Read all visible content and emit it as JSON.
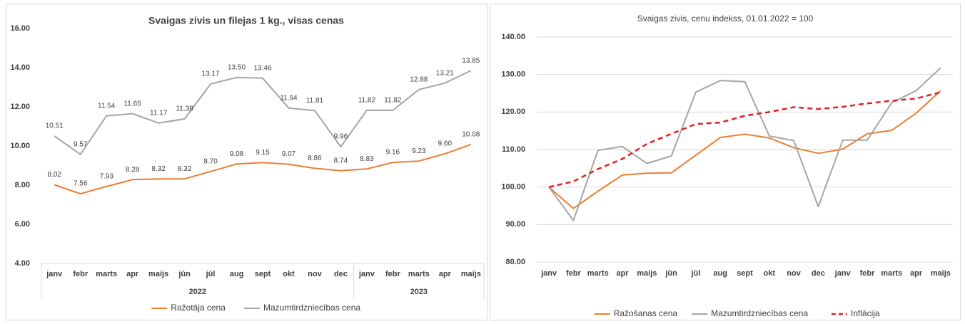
{
  "chart_data": [
    {
      "type": "line",
      "title": "Svaigas zivis un filejas 1 kg., visas cenas",
      "categories": [
        "janv",
        "febr",
        "marts",
        "apr",
        "maijs",
        "jūn",
        "jūl",
        "aug",
        "sept",
        "okt",
        "nov",
        "dec",
        "janv",
        "febr",
        "marts",
        "apr",
        "maijs"
      ],
      "group_labels": [
        "2022",
        "2023"
      ],
      "ylim": [
        4,
        16
      ],
      "yticks": [
        {
          "value": 4,
          "label": "4.00"
        },
        {
          "value": 6,
          "label": "6.00"
        },
        {
          "value": 8,
          "label": "8.00"
        },
        {
          "value": 10,
          "label": "10.00"
        },
        {
          "value": 12,
          "label": "12.00"
        },
        {
          "value": 14,
          "label": "14.00"
        },
        {
          "value": 16,
          "label": "16.00"
        }
      ],
      "grid": false,
      "legend": "bottom",
      "series": [
        {
          "name": "Ražotāja cena",
          "color": "#ed7d31",
          "values": [
            8.02,
            7.56,
            7.93,
            8.28,
            8.32,
            8.32,
            8.7,
            9.08,
            9.15,
            9.07,
            8.86,
            8.74,
            8.83,
            9.16,
            9.23,
            9.6,
            10.08
          ],
          "value_labels": [
            "8.02",
            "7.56",
            "7.93",
            "8.28",
            "8.32",
            "8.32",
            "8.70",
            "9.08",
            "9.15",
            "9.07",
            "8.86",
            "8.74",
            "8.83",
            "9.16",
            "9.23",
            "9.60",
            "10.08"
          ]
        },
        {
          "name": "Mazumtirdzniecības cena",
          "color": "#a5a5a5",
          "values": [
            10.51,
            9.57,
            11.54,
            11.65,
            11.17,
            11.38,
            13.17,
            13.5,
            13.46,
            11.94,
            11.81,
            9.96,
            11.82,
            11.82,
            12.88,
            13.21,
            13.85
          ],
          "value_labels": [
            "10.51",
            "9.57",
            "11.54",
            "11.65",
            "11.17",
            "11.38",
            "13.17",
            "13.50",
            "13.46",
            "11.94",
            "11.81",
            "9.96",
            "11.82",
            "11.82",
            "12.88",
            "13.21",
            "13.85"
          ]
        }
      ]
    },
    {
      "type": "line",
      "title": "Svaigas zivis, cenu indekss, 01.01.2022 = 100",
      "categories": [
        "janv",
        "febr",
        "marts",
        "apr",
        "maijs",
        "jūn",
        "jūl",
        "aug",
        "sept",
        "okt",
        "nov",
        "dec",
        "janv",
        "febr",
        "marts",
        "apr",
        "maijs"
      ],
      "ylim": [
        80,
        140
      ],
      "yticks": [
        {
          "value": 80,
          "label": "80.00"
        },
        {
          "value": 90,
          "label": "90.00"
        },
        {
          "value": 100,
          "label": "100.00"
        },
        {
          "value": 110,
          "label": "110.00"
        },
        {
          "value": 120,
          "label": "120.00"
        },
        {
          "value": 130,
          "label": "130.00"
        },
        {
          "value": 140,
          "label": "140.00"
        }
      ],
      "grid": true,
      "legend": "bottom",
      "series": [
        {
          "name": "Ražošanas cena",
          "color": "#ed7d31",
          "values": [
            100,
            94.3,
            98.9,
            103.2,
            103.7,
            103.8,
            108.5,
            113.2,
            114.1,
            113.1,
            110.5,
            109.0,
            110.1,
            114.2,
            115.1,
            119.7,
            125.7
          ]
        },
        {
          "name": "Mazumtirdzniecības cena",
          "color": "#a5a5a5",
          "values": [
            100,
            91.1,
            109.8,
            110.8,
            106.3,
            108.3,
            125.3,
            128.4,
            128.1,
            113.6,
            112.4,
            94.8,
            112.5,
            112.5,
            122.5,
            125.7,
            131.8
          ]
        },
        {
          "name": "Inflācija",
          "color": "#e02020",
          "dashed": true,
          "values": [
            100,
            101.5,
            104.8,
            107.5,
            111.5,
            114.2,
            116.8,
            117.2,
            119.0,
            120.0,
            121.3,
            120.8,
            121.4,
            122.3,
            123.0,
            123.6,
            125.3
          ]
        }
      ]
    }
  ]
}
